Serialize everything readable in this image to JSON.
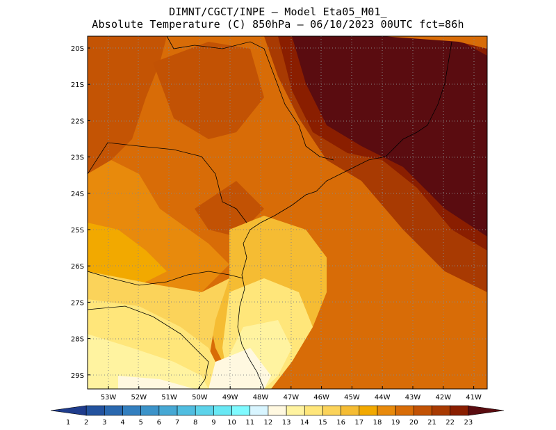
{
  "header": {
    "line1": "DIMNT/CGCT/INPE –  Model Eta05_M01_",
    "line2": "Absolute Temperature (C) 850hPa –  06/10/2023 00UTC fct=86h"
  },
  "map": {
    "lat_labels": [
      "20S",
      "21S",
      "22S",
      "23S",
      "24S",
      "25S",
      "26S",
      "27S",
      "28S",
      "29S"
    ],
    "lon_labels": [
      "53W",
      "52W",
      "51W",
      "50W",
      "49W",
      "48W",
      "47W",
      "46W",
      "45W",
      "44W",
      "43W",
      "42W",
      "41W"
    ]
  },
  "colorbar": {
    "labels": [
      "1",
      "2",
      "3",
      "4",
      "5",
      "6",
      "7",
      "8",
      "9",
      "10",
      "11",
      "12",
      "13",
      "14",
      "15",
      "16",
      "17",
      "18",
      "19",
      "20",
      "21",
      "22",
      "23"
    ],
    "colors": [
      "#1f3c8c",
      "#23529e",
      "#2a68af",
      "#337fbf",
      "#3c93c9",
      "#46a8d4",
      "#50bde0",
      "#5dd3ea",
      "#68e8f4",
      "#7ffaff",
      "#d8f5ff",
      "#fff8e0",
      "#fff3a0",
      "#ffe67a",
      "#fbd35a",
      "#f5bc33",
      "#f2a900",
      "#e88a0c",
      "#d86c07",
      "#c25204",
      "#a83a02",
      "#8a1e00",
      "#5a0c10"
    ]
  }
}
